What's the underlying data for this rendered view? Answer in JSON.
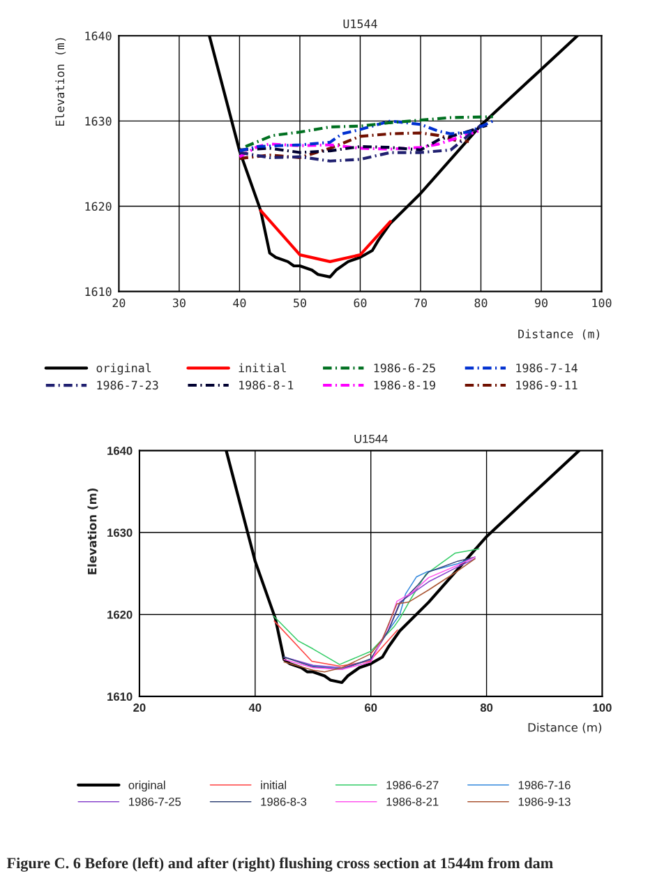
{
  "chart_data": [
    {
      "type": "line",
      "title": "U1544",
      "xlabel": "Distance (m)",
      "ylabel": "Elevation (m)",
      "xlim": [
        20,
        100
      ],
      "ylim": [
        1610,
        1640
      ],
      "xticks": [
        20,
        30,
        40,
        50,
        60,
        70,
        80,
        90,
        100
      ],
      "yticks": [
        1610,
        1620,
        1630,
        1640
      ],
      "grid": true,
      "legend": "bottom",
      "series": [
        {
          "name": "original",
          "color": "#000000",
          "line_style": "solid",
          "x": [
            35,
            40,
            43.5,
            45,
            46,
            48,
            49,
            50,
            52,
            53,
            55,
            56,
            58,
            60,
            62,
            63,
            65,
            70,
            80,
            96
          ],
          "values": [
            1640,
            1626.5,
            1619.5,
            1614.5,
            1614,
            1613.5,
            1613,
            1613,
            1612.5,
            1612,
            1611.7,
            1612.5,
            1613.5,
            1614,
            1614.8,
            1616,
            1618,
            1621.5,
            1629.5,
            1640
          ]
        },
        {
          "name": "initial",
          "color": "#ff0000",
          "line_style": "solid",
          "x": [
            43.5,
            50,
            55,
            60,
            65
          ],
          "values": [
            1619.5,
            1614.3,
            1613.5,
            1614.3,
            1618.2
          ]
        },
        {
          "name": "1986-6-25",
          "color": "#007020",
          "line_style": "dashed",
          "x": [
            41,
            45.5,
            50,
            55,
            60,
            65,
            70,
            75,
            82
          ],
          "values": [
            1627,
            1628.3,
            1628.7,
            1629.3,
            1629.4,
            1629.8,
            1630.1,
            1630.4,
            1630.5
          ]
        },
        {
          "name": "1986-7-14",
          "color": "#0030d0",
          "line_style": "dashed",
          "x": [
            40,
            43,
            50,
            55,
            57,
            60,
            65,
            70,
            73,
            75,
            78,
            82
          ],
          "values": [
            1626.5,
            1627,
            1627.2,
            1627.5,
            1628.5,
            1629,
            1630,
            1629.6,
            1628.8,
            1628.5,
            1628.7,
            1630
          ]
        },
        {
          "name": "1986-7-23",
          "color": "#202070",
          "line_style": "dashed",
          "x": [
            40,
            45,
            50,
            55,
            60,
            65,
            70,
            75,
            80
          ],
          "values": [
            1626.3,
            1625.7,
            1625.8,
            1625.3,
            1625.5,
            1626.3,
            1626.3,
            1626.6,
            1629.5
          ]
        },
        {
          "name": "1986-8-1",
          "color": "#000030",
          "line_style": "dashed",
          "x": [
            40,
            45,
            50,
            55,
            60,
            65,
            70,
            73,
            78,
            81
          ],
          "values": [
            1626.6,
            1626.8,
            1626.3,
            1626.5,
            1627,
            1626.9,
            1626.6,
            1627.8,
            1628.8,
            1629.5
          ]
        },
        {
          "name": "1986-8-19",
          "color": "#ff00ff",
          "line_style": "dashed",
          "x": [
            40,
            43,
            45,
            50,
            55,
            60,
            65,
            70,
            73,
            76,
            80
          ],
          "values": [
            1625.8,
            1627,
            1627.3,
            1627.1,
            1627.2,
            1626.8,
            1626.7,
            1626.9,
            1627.3,
            1628,
            1628.9
          ]
        },
        {
          "name": "1986-9-11",
          "color": "#701000",
          "line_style": "dashed",
          "x": [
            40,
            45,
            50,
            55,
            60,
            65,
            70,
            73,
            76,
            78
          ],
          "values": [
            1625.6,
            1626,
            1625.7,
            1626.8,
            1628.2,
            1628.5,
            1628.6,
            1628.3,
            1627.7,
            1627.6
          ]
        }
      ]
    },
    {
      "type": "line",
      "title": "U1544",
      "xlabel": "Distance (m)",
      "ylabel": "Elevation (m)",
      "xlim": [
        20,
        100
      ],
      "ylim": [
        1610,
        1640
      ],
      "xticks": [
        20,
        40,
        60,
        80,
        100
      ],
      "yticks": [
        1610,
        1620,
        1630,
        1640
      ],
      "grid": true,
      "legend": "bottom",
      "annotations": [
        "Figure C. 6 Before (left) and after (right) flushing cross section at 1544m from dam"
      ],
      "series": [
        {
          "name": "original",
          "color": "#000000",
          "line_style": "solid",
          "x": [
            35,
            40,
            43.5,
            45,
            46,
            48,
            49,
            50,
            52,
            53,
            55,
            56,
            58,
            60,
            62,
            63,
            65,
            70,
            80,
            96
          ],
          "values": [
            1640,
            1626.5,
            1619.5,
            1614.5,
            1614,
            1613.5,
            1613,
            1613,
            1612.5,
            1612,
            1611.7,
            1612.5,
            1613.5,
            1614,
            1614.8,
            1616,
            1618,
            1621.5,
            1629.5,
            1640
          ]
        },
        {
          "name": "initial",
          "color": "#ff4040",
          "line_style": "solid",
          "x": [
            43.3,
            49.8,
            54.6,
            59.8,
            64.6
          ],
          "values": [
            1619.2,
            1614.3,
            1613.7,
            1614.3,
            1618.1
          ]
        },
        {
          "name": "1986-6-27",
          "color": "#33cc66",
          "line_style": "solid",
          "x": [
            43.2,
            47.4,
            50,
            54.6,
            60,
            64,
            65,
            67,
            69.5,
            74.6,
            78.7
          ],
          "values": [
            1619.8,
            1616.8,
            1615.8,
            1613.9,
            1615.5,
            1618.5,
            1619.5,
            1622,
            1624.9,
            1627.5,
            1628
          ]
        },
        {
          "name": "1986-7-16",
          "color": "#3388dd",
          "line_style": "solid",
          "x": [
            45,
            50,
            55,
            60,
            62,
            65,
            66,
            67.9,
            69.7,
            75,
            78
          ],
          "values": [
            1614.8,
            1613.7,
            1613.4,
            1614.5,
            1617,
            1620,
            1622.5,
            1624.6,
            1625.2,
            1626.2,
            1627
          ]
        },
        {
          "name": "1986-7-25",
          "color": "#8844cc",
          "line_style": "solid",
          "x": [
            45,
            50,
            55,
            60,
            63,
            65,
            70,
            75,
            78
          ],
          "values": [
            1614.8,
            1613.8,
            1613.5,
            1614.5,
            1618,
            1621.5,
            1624,
            1625.8,
            1626.8
          ]
        },
        {
          "name": "1986-8-3",
          "color": "#334477",
          "line_style": "solid",
          "x": [
            45,
            50,
            55,
            60,
            63,
            65,
            68,
            70,
            75,
            78
          ],
          "values": [
            1614.8,
            1613.6,
            1613.3,
            1614.6,
            1618,
            1621.3,
            1623.5,
            1625.2,
            1626.5,
            1627
          ]
        },
        {
          "name": "1986-8-21",
          "color": "#ff55ee",
          "line_style": "solid",
          "x": [
            45,
            50,
            55,
            60,
            63,
            64.5,
            67,
            70,
            75,
            78
          ],
          "values": [
            1614.5,
            1613.5,
            1613.3,
            1614.2,
            1618.5,
            1621.6,
            1622.6,
            1624.5,
            1626,
            1627
          ]
        },
        {
          "name": "1986-9-13",
          "color": "#aa5533",
          "line_style": "solid",
          "x": [
            45,
            50,
            52,
            55,
            60,
            62,
            64.5,
            66.5,
            70,
            75,
            78
          ],
          "values": [
            1614.2,
            1613.2,
            1613,
            1613.5,
            1615.2,
            1617,
            1621.3,
            1621.5,
            1623,
            1625.3,
            1626.8
          ]
        }
      ]
    }
  ]
}
